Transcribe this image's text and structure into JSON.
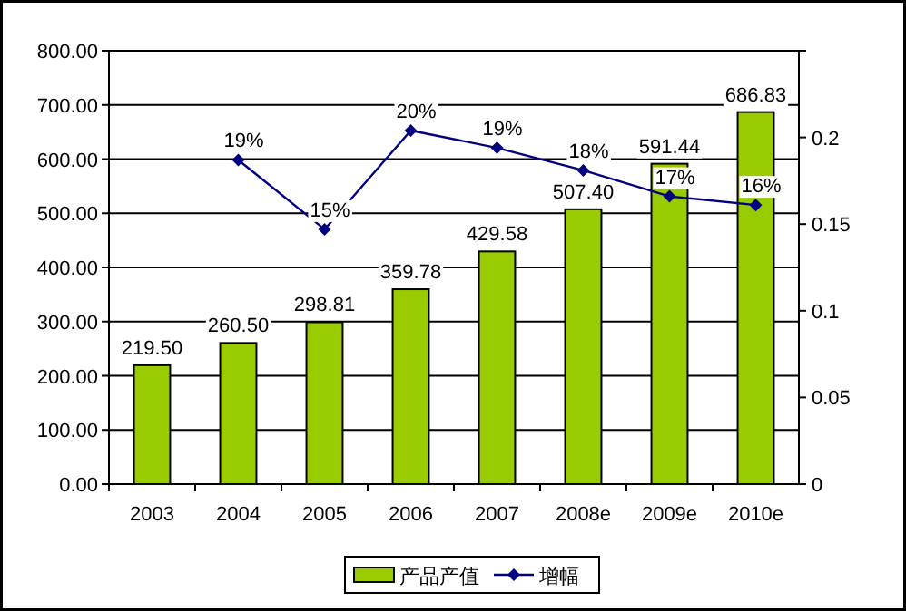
{
  "chart_data": {
    "type": "bar",
    "categories": [
      "2003",
      "2004",
      "2005",
      "2006",
      "2007",
      "2008e",
      "2009e",
      "2010e"
    ],
    "series": [
      {
        "name": "产品产值",
        "color": "#99cc00",
        "values": [
          219.5,
          260.5,
          298.81,
          359.78,
          429.58,
          507.4,
          591.44,
          686.83
        ],
        "value_labels": [
          "219.50",
          "260.50",
          "298.81",
          "359.78",
          "429.58",
          "507.40",
          "591.44",
          "686.83"
        ]
      },
      {
        "name": "增幅",
        "type": "line",
        "axis": "y2",
        "color": "#000080",
        "marker": "diamond",
        "values": [
          null,
          0.187,
          0.147,
          0.204,
          0.194,
          0.181,
          0.166,
          0.161
        ],
        "value_labels": [
          null,
          "19%",
          "15%",
          "20%",
          "19%",
          "18%",
          "17%",
          "16%"
        ]
      }
    ],
    "ylim": [
      0,
      800
    ],
    "yticks": [
      {
        "value": 0,
        "label": "0.00"
      },
      {
        "value": 100,
        "label": "100.00"
      },
      {
        "value": 200,
        "label": "200.00"
      },
      {
        "value": 300,
        "label": "300.00"
      },
      {
        "value": 400,
        "label": "400.00"
      },
      {
        "value": 500,
        "label": "500.00"
      },
      {
        "value": 600,
        "label": "600.00"
      },
      {
        "value": 700,
        "label": "700.00"
      },
      {
        "value": 800,
        "label": "800.00"
      }
    ],
    "y2lim": [
      0,
      0.25
    ],
    "y2ticks": [
      0,
      0.05,
      0.1,
      0.15,
      0.2,
      {
        "value": 0.25,
        "label": null
      }
    ],
    "grid": "y",
    "legend": "bottom"
  }
}
